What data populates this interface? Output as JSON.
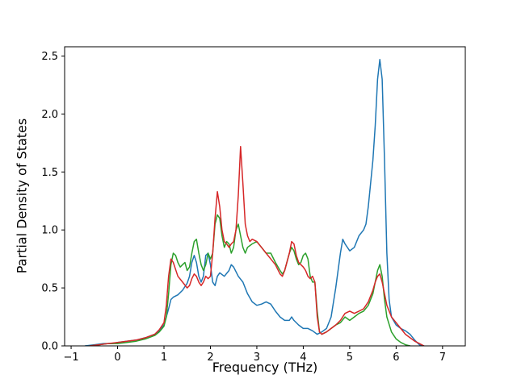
{
  "chart_data": {
    "type": "line",
    "title": "",
    "xlabel": "Frequency (THz)",
    "ylabel": "Partial Density of States",
    "xlim": [
      -1.14,
      7.49
    ],
    "ylim": [
      0,
      2.58
    ],
    "grid": false,
    "legend": "none",
    "xticks": [
      -1,
      0,
      1,
      2,
      3,
      4,
      5,
      6,
      7
    ],
    "xtick_labels": [
      "−1",
      "0",
      "1",
      "2",
      "3",
      "4",
      "5",
      "6",
      "7"
    ],
    "yticks": [
      0.0,
      0.5,
      1.0,
      1.5,
      2.0,
      2.5
    ],
    "ytick_labels": [
      "0.0",
      "0.5",
      "1.0",
      "1.5",
      "2.0",
      "2.5"
    ],
    "series": [
      {
        "name": "series-blue",
        "color": "#1f77b4",
        "x": [
          -0.7,
          -0.5,
          -0.3,
          -0.1,
          0,
          0.2,
          0.4,
          0.6,
          0.8,
          0.9,
          1,
          1.05,
          1.1,
          1.15,
          1.2,
          1.3,
          1.4,
          1.5,
          1.55,
          1.6,
          1.65,
          1.7,
          1.75,
          1.8,
          1.85,
          1.9,
          1.95,
          2,
          2.05,
          2.1,
          2.15,
          2.2,
          2.3,
          2.4,
          2.45,
          2.5,
          2.6,
          2.7,
          2.8,
          2.9,
          3,
          3.1,
          3.2,
          3.3,
          3.4,
          3.5,
          3.6,
          3.7,
          3.75,
          3.8,
          3.9,
          4,
          4.1,
          4.2,
          4.3,
          4.4,
          4.5,
          4.6,
          4.7,
          4.8,
          4.85,
          4.9,
          5,
          5.1,
          5.2,
          5.3,
          5.35,
          5.4,
          5.5,
          5.55,
          5.6,
          5.65,
          5.7,
          5.75,
          5.8,
          5.85,
          5.9,
          6,
          6.1,
          6.2,
          6.3,
          6.4,
          6.5,
          6.6
        ],
        "y": [
          0,
          0.01,
          0.02,
          0.02,
          0.03,
          0.04,
          0.05,
          0.07,
          0.1,
          0.13,
          0.18,
          0.25,
          0.32,
          0.4,
          0.42,
          0.44,
          0.48,
          0.54,
          0.6,
          0.72,
          0.78,
          0.72,
          0.6,
          0.55,
          0.6,
          0.78,
          0.8,
          0.7,
          0.55,
          0.52,
          0.6,
          0.63,
          0.6,
          0.65,
          0.7,
          0.68,
          0.6,
          0.55,
          0.45,
          0.38,
          0.35,
          0.36,
          0.38,
          0.36,
          0.3,
          0.25,
          0.22,
          0.22,
          0.25,
          0.22,
          0.18,
          0.15,
          0.15,
          0.13,
          0.1,
          0.12,
          0.15,
          0.25,
          0.5,
          0.8,
          0.92,
          0.88,
          0.82,
          0.85,
          0.95,
          1,
          1.05,
          1.2,
          1.6,
          1.9,
          2.3,
          2.47,
          2.3,
          1.6,
          0.8,
          0.4,
          0.25,
          0.18,
          0.15,
          0.13,
          0.1,
          0.05,
          0.01,
          0
        ]
      },
      {
        "name": "series-green",
        "color": "#2ca02c",
        "x": [
          -0.6,
          -0.4,
          -0.2,
          0,
          0.2,
          0.4,
          0.6,
          0.8,
          0.9,
          1,
          1.05,
          1.1,
          1.15,
          1.2,
          1.25,
          1.3,
          1.35,
          1.4,
          1.45,
          1.5,
          1.55,
          1.6,
          1.65,
          1.7,
          1.75,
          1.8,
          1.85,
          1.9,
          1.95,
          2,
          2.05,
          2.1,
          2.15,
          2.2,
          2.25,
          2.3,
          2.35,
          2.4,
          2.45,
          2.5,
          2.55,
          2.6,
          2.65,
          2.7,
          2.75,
          2.8,
          2.9,
          3,
          3.1,
          3.2,
          3.3,
          3.4,
          3.5,
          3.55,
          3.6,
          3.7,
          3.75,
          3.8,
          3.85,
          3.9,
          3.95,
          4,
          4.05,
          4.1,
          4.15,
          4.2,
          4.25,
          4.3,
          4.35,
          4.4,
          4.5,
          4.6,
          4.7,
          4.8,
          4.9,
          5,
          5.1,
          5.2,
          5.3,
          5.4,
          5.5,
          5.55,
          5.6,
          5.65,
          5.7,
          5.75,
          5.8,
          5.9,
          6,
          6.1,
          6.2,
          6.3
        ],
        "y": [
          0,
          0.01,
          0.02,
          0.02,
          0.03,
          0.04,
          0.06,
          0.09,
          0.12,
          0.17,
          0.25,
          0.45,
          0.7,
          0.8,
          0.78,
          0.72,
          0.68,
          0.7,
          0.72,
          0.65,
          0.68,
          0.8,
          0.9,
          0.92,
          0.8,
          0.7,
          0.65,
          0.7,
          0.8,
          0.75,
          0.8,
          1.05,
          1.13,
          1.1,
          0.95,
          0.85,
          0.9,
          0.88,
          0.8,
          0.85,
          1,
          1.05,
          0.95,
          0.85,
          0.8,
          0.85,
          0.88,
          0.9,
          0.85,
          0.8,
          0.8,
          0.72,
          0.65,
          0.62,
          0.65,
          0.8,
          0.85,
          0.82,
          0.75,
          0.7,
          0.72,
          0.78,
          0.8,
          0.75,
          0.6,
          0.55,
          0.55,
          0.3,
          0.12,
          0.1,
          0.12,
          0.15,
          0.18,
          0.2,
          0.25,
          0.22,
          0.25,
          0.28,
          0.3,
          0.35,
          0.45,
          0.55,
          0.65,
          0.7,
          0.6,
          0.4,
          0.25,
          0.12,
          0.06,
          0.03,
          0.01,
          0
        ]
      },
      {
        "name": "series-red",
        "color": "#d62728",
        "x": [
          -0.6,
          -0.4,
          -0.2,
          0,
          0.2,
          0.4,
          0.6,
          0.8,
          0.9,
          1,
          1.05,
          1.1,
          1.15,
          1.2,
          1.3,
          1.4,
          1.5,
          1.55,
          1.6,
          1.65,
          1.7,
          1.75,
          1.8,
          1.85,
          1.9,
          1.95,
          2,
          2.05,
          2.1,
          2.15,
          2.2,
          2.25,
          2.3,
          2.35,
          2.4,
          2.45,
          2.5,
          2.55,
          2.6,
          2.65,
          2.7,
          2.75,
          2.8,
          2.85,
          2.9,
          3,
          3.1,
          3.2,
          3.3,
          3.4,
          3.5,
          3.55,
          3.6,
          3.7,
          3.75,
          3.8,
          3.85,
          3.9,
          3.95,
          4,
          4.05,
          4.1,
          4.15,
          4.2,
          4.25,
          4.3,
          4.35,
          4.4,
          4.5,
          4.6,
          4.7,
          4.8,
          4.9,
          5,
          5.1,
          5.2,
          5.3,
          5.4,
          5.5,
          5.55,
          5.6,
          5.65,
          5.7,
          5.75,
          5.8,
          5.9,
          6,
          6.1,
          6.2,
          6.3,
          6.4,
          6.5,
          6.6
        ],
        "y": [
          0,
          0.01,
          0.02,
          0.03,
          0.04,
          0.05,
          0.07,
          0.1,
          0.14,
          0.2,
          0.35,
          0.6,
          0.75,
          0.72,
          0.6,
          0.55,
          0.5,
          0.52,
          0.58,
          0.62,
          0.6,
          0.55,
          0.52,
          0.55,
          0.6,
          0.58,
          0.6,
          0.8,
          1.1,
          1.33,
          1.2,
          1,
          0.9,
          0.88,
          0.85,
          0.88,
          0.9,
          1,
          1.3,
          1.72,
          1.4,
          1.05,
          0.95,
          0.9,
          0.92,
          0.9,
          0.85,
          0.8,
          0.75,
          0.7,
          0.62,
          0.6,
          0.65,
          0.8,
          0.9,
          0.88,
          0.78,
          0.72,
          0.7,
          0.68,
          0.65,
          0.6,
          0.58,
          0.6,
          0.55,
          0.25,
          0.12,
          0.1,
          0.12,
          0.15,
          0.18,
          0.22,
          0.28,
          0.3,
          0.28,
          0.3,
          0.32,
          0.38,
          0.48,
          0.55,
          0.6,
          0.62,
          0.55,
          0.45,
          0.35,
          0.25,
          0.2,
          0.15,
          0.1,
          0.07,
          0.04,
          0.02,
          0
        ]
      }
    ]
  }
}
